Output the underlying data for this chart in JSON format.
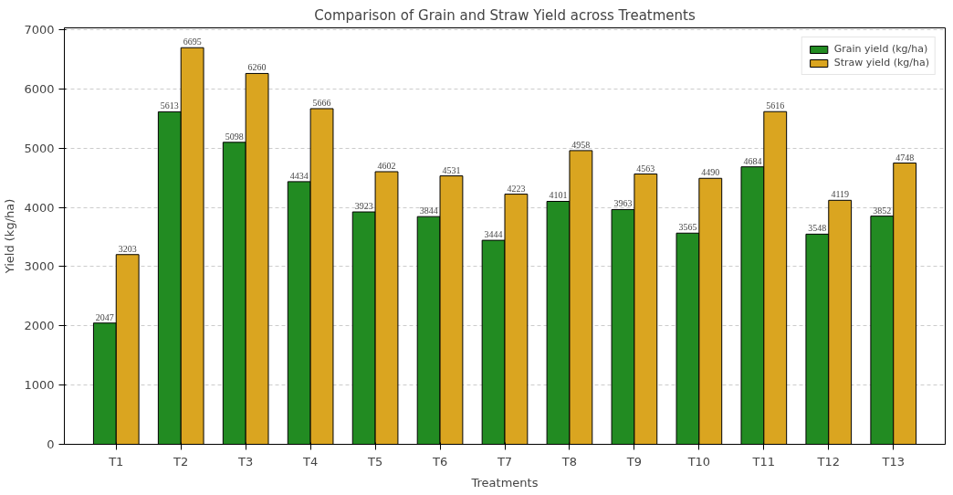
{
  "chart_data": {
    "type": "bar",
    "title": "Comparison of Grain and Straw Yield across Treatments",
    "xlabel": "Treatments",
    "ylabel": "Yield (kg/ha)",
    "categories": [
      "T1",
      "T2",
      "T3",
      "T4",
      "T5",
      "T6",
      "T7",
      "T8",
      "T9",
      "T10",
      "T11",
      "T12",
      "T13"
    ],
    "series": [
      {
        "name": "Grain yield (kg/ha)",
        "color": "#228b22",
        "values": [
          2047,
          5613,
          5098,
          4434,
          3923,
          3844,
          3444,
          4101,
          3963,
          3565,
          4684,
          3548,
          3852
        ]
      },
      {
        "name": "Straw yield (kg/ha)",
        "color": "#daa520",
        "values": [
          3203,
          6695,
          6260,
          5666,
          4602,
          4531,
          4223,
          4958,
          4563,
          4490,
          5616,
          4119,
          4748
        ]
      }
    ],
    "ylim": [
      0,
      7030
    ],
    "yticks": [
      0,
      1000,
      2000,
      3000,
      4000,
      5000,
      6000,
      7000
    ],
    "grid": "y",
    "legend": "top right",
    "data_labels": true
  }
}
